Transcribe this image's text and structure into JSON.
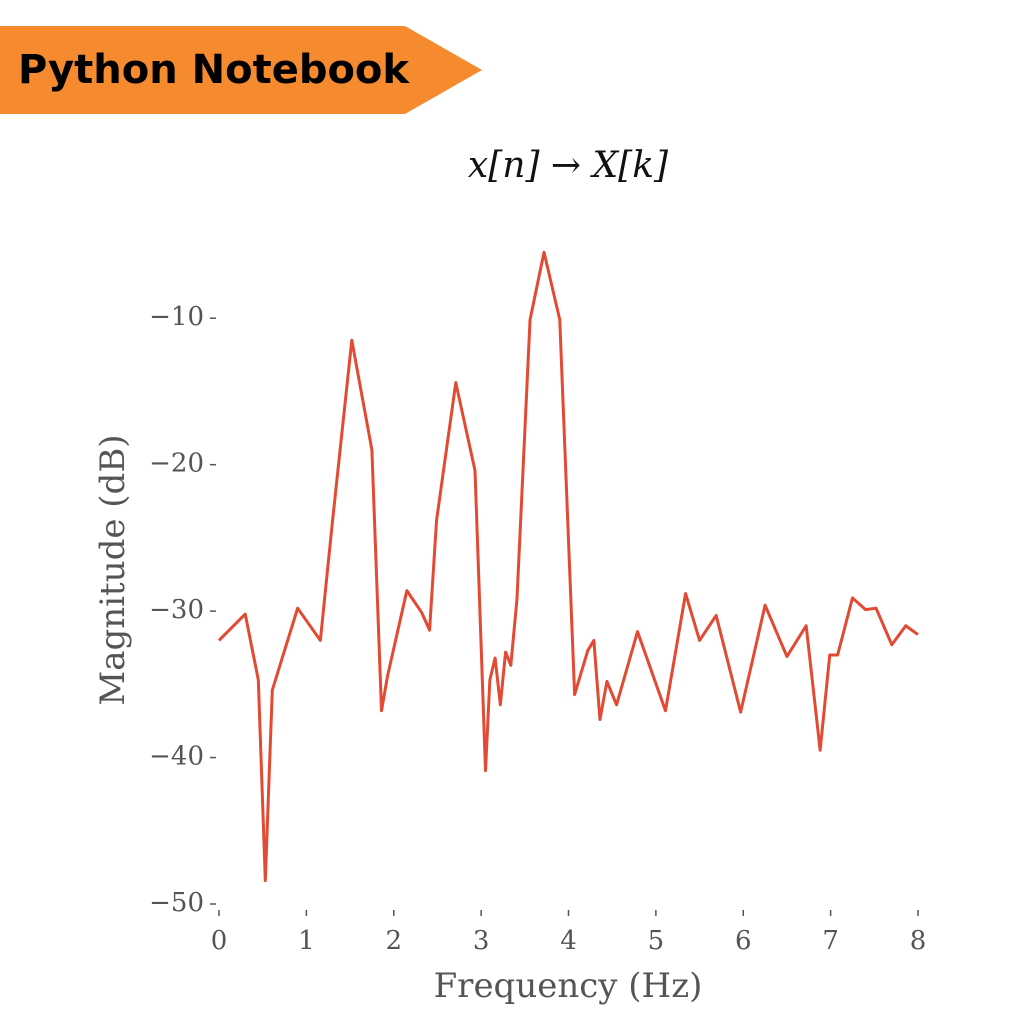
{
  "header": {
    "label": "Python Notebook"
  },
  "chart_data": {
    "type": "line",
    "title": "x[n] → X[k]",
    "xlabel": "Frequency (Hz)",
    "ylabel": "Magnitude (dB)",
    "xlim": [
      0,
      8
    ],
    "ylim": [
      -50,
      -5
    ],
    "xticks": [
      0,
      1,
      2,
      3,
      4,
      5,
      6,
      7,
      8
    ],
    "yticks": [
      {
        "value": -50,
        "label": "−50"
      },
      {
        "value": -40,
        "label": "−40"
      },
      {
        "value": -30,
        "label": "−30"
      },
      {
        "value": -20,
        "label": "−20"
      },
      {
        "value": -10,
        "label": "−10"
      }
    ],
    "grid": false,
    "series": [
      {
        "color": "#e24a33",
        "x": [
          0,
          0.3,
          0.45,
          0.53,
          0.61,
          0.9,
          1.16,
          1.3,
          1.52,
          1.75,
          1.86,
          1.93,
          2.15,
          2.32,
          2.41,
          2.49,
          2.71,
          2.93,
          3.05,
          3.1,
          3.16,
          3.22,
          3.28,
          3.34,
          3.41,
          3.56,
          3.72,
          3.9,
          4.07,
          4.22,
          4.29,
          4.36,
          4.44,
          4.55,
          4.79,
          5.11,
          5.34,
          5.5,
          5.69,
          5.97,
          6.25,
          6.5,
          6.72,
          6.88,
          6.99,
          7.08,
          7.25,
          7.4,
          7.52,
          7.7,
          7.86,
          8.0
        ],
        "values": [
          -32.0,
          -30.2,
          -34.7,
          -48.4,
          -35.4,
          -29.8,
          -32.0,
          -23.8,
          -11.5,
          -19.0,
          -36.8,
          -34.4,
          -28.6,
          -30.1,
          -31.3,
          -23.8,
          -14.4,
          -20.4,
          -40.9,
          -34.7,
          -33.2,
          -36.4,
          -32.8,
          -33.7,
          -29.2,
          -10.1,
          -5.5,
          -10.1,
          -35.7,
          -32.7,
          -32.0,
          -37.4,
          -34.8,
          -36.4,
          -31.4,
          -36.8,
          -28.8,
          -32.0,
          -30.3,
          -36.9,
          -29.6,
          -33.1,
          -31.0,
          -39.5,
          -33.0,
          -33.0,
          -29.1,
          -29.9,
          -29.8,
          -32.3,
          -31.0,
          -31.6
        ]
      }
    ]
  }
}
